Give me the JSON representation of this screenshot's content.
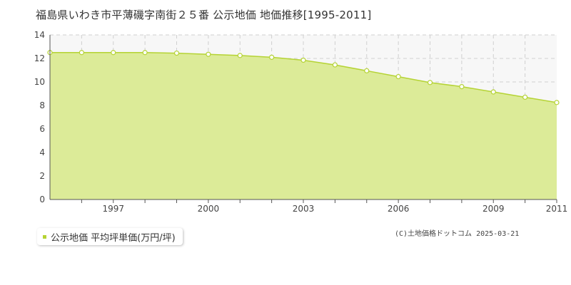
{
  "title": "福島県いわき市平薄磯字南街２５番 公示地価 地価推移[1995-2011]",
  "legend": {
    "label": "公示地価 平均坪単価(万円/坪)"
  },
  "copyright": "(C)土地価格ドットコム 2025-03-21",
  "colors": {
    "area_fill": "#dceb98",
    "line": "#b5d334",
    "marker_fill": "#ffffff",
    "marker_stroke": "#b5d334",
    "grid": "#d0d0d0",
    "plot_bg": "#f7f7f7"
  },
  "chart_data": {
    "type": "area",
    "x": [
      1995,
      1996,
      1997,
      1998,
      1999,
      2000,
      2001,
      2002,
      2003,
      2004,
      2005,
      2006,
      2007,
      2008,
      2009,
      2010,
      2011
    ],
    "series": [
      {
        "name": "公示地価 平均坪単価(万円/坪)",
        "values": [
          12.5,
          12.5,
          12.5,
          12.5,
          12.45,
          12.35,
          12.25,
          12.1,
          11.85,
          11.45,
          10.95,
          10.45,
          9.95,
          9.6,
          9.15,
          8.7,
          8.25
        ]
      }
    ],
    "xlim": [
      1995,
      2011
    ],
    "ylim": [
      0,
      14
    ],
    "yticks": [
      0,
      2,
      4,
      6,
      8,
      10,
      12,
      14
    ],
    "xticks": [
      1997,
      2000,
      2003,
      2006,
      2009,
      2011
    ],
    "grid": true,
    "legend_position": "bottom-left"
  }
}
